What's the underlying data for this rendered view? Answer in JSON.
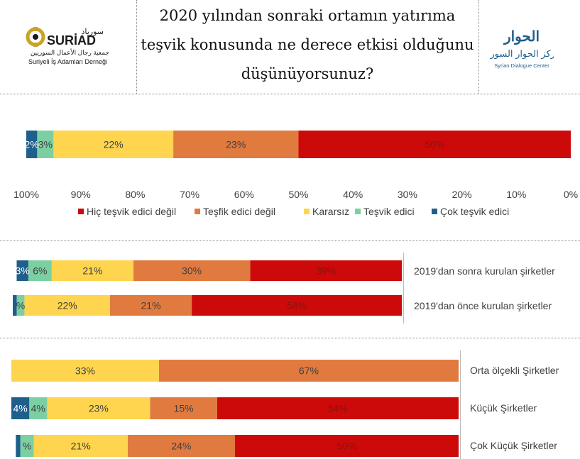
{
  "header": {
    "title_lines": [
      "2020 yılından sonraki ortamın yatırıma",
      "teşvik konusunda ne derece etkisi olduğunu",
      "düşünüyorsunuz?"
    ],
    "left_logo": {
      "arabic": "سورياد",
      "wordmark": "SURİAD",
      "arabic_sub": "جمعية رجال الأعمال السوريين",
      "turkish": "Suriyeli İş Adamları Derneği"
    },
    "right_logo": {
      "arabic_top": "الحوار",
      "arabic_sub": "مركز الحوار السوري",
      "english": "Syrian Dialogue Center"
    }
  },
  "colors": {
    "hic": "#cc0a0a",
    "tesfik": "#e07a3e",
    "kararsiz": "#ffd54f",
    "tesvik": "#7ccfa2",
    "cok": "#1f5f8b"
  },
  "chart_data": [
    {
      "type": "bar",
      "orientation": "horizontal-stacked",
      "x_direction": "reversed",
      "xlim": [
        0,
        100
      ],
      "xticks": [
        "100%",
        "90%",
        "80%",
        "70%",
        "60%",
        "50%",
        "40%",
        "30%",
        "20%",
        "10%",
        "0%"
      ],
      "legend": [
        "Hiç teşvik edici değil",
        "Teşfik edici değil",
        "Kararsız",
        "Teşvik edici",
        "Çok teşvik edici"
      ],
      "legend_position": "bottom",
      "categories": [
        ""
      ],
      "series": [
        {
          "name": "Hiç teşvik edici değil",
          "values": [
            50
          ],
          "labels": [
            "50%"
          ]
        },
        {
          "name": "Teşfik edici değil",
          "values": [
            23
          ],
          "labels": [
            "23%"
          ]
        },
        {
          "name": "Kararsız",
          "values": [
            22
          ],
          "labels": [
            "22%"
          ]
        },
        {
          "name": "Teşvik edici",
          "values": [
            3
          ],
          "labels": [
            "3%"
          ]
        },
        {
          "name": "Çok teşvik edici",
          "values": [
            2
          ],
          "labels": [
            "2%"
          ]
        }
      ]
    },
    {
      "type": "bar",
      "orientation": "horizontal-stacked",
      "x_direction": "reversed",
      "categories": [
        "2019'dan sonra kurulan şirketler",
        "2019'dan önce kurulan şirketler"
      ],
      "series": [
        {
          "name": "Hiç teşvik edici değil",
          "values": [
            39,
            54
          ],
          "labels": [
            "39%",
            "54%"
          ]
        },
        {
          "name": "Teşfik edici değil",
          "values": [
            30,
            21
          ],
          "labels": [
            "30%",
            "21%"
          ]
        },
        {
          "name": "Kararsız",
          "values": [
            21,
            22
          ],
          "labels": [
            "21%",
            "22%"
          ]
        },
        {
          "name": "Teşvik edici",
          "values": [
            6,
            2
          ],
          "labels": [
            "6%",
            "%"
          ]
        },
        {
          "name": "Çok teşvik edici",
          "values": [
            3,
            1
          ],
          "labels": [
            "3%",
            ""
          ]
        }
      ]
    },
    {
      "type": "bar",
      "orientation": "horizontal-stacked",
      "x_direction": "reversed",
      "categories": [
        "Orta ölçekli Şirketler",
        "Küçük Şirketler",
        "Çok Küçük Şirketler"
      ],
      "series": [
        {
          "name": "Hiç teşvik edici değil",
          "values": [
            0,
            54,
            50
          ],
          "labels": [
            "",
            "54%",
            "50%"
          ]
        },
        {
          "name": "Teşfik edici değil",
          "values": [
            67,
            15,
            24
          ],
          "labels": [
            "67%",
            "15%",
            "24%"
          ]
        },
        {
          "name": "Kararsız",
          "values": [
            33,
            23,
            21
          ],
          "labels": [
            "33%",
            "23%",
            "21%"
          ]
        },
        {
          "name": "Teşvik edici",
          "values": [
            0,
            4,
            3
          ],
          "labels": [
            "",
            "4%",
            "%"
          ]
        },
        {
          "name": "Çok teşvik edici",
          "values": [
            0,
            4,
            1
          ],
          "labels": [
            "",
            "4%",
            ""
          ]
        }
      ]
    }
  ]
}
